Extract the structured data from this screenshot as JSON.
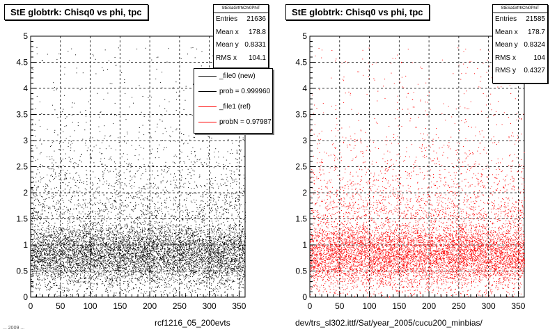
{
  "colors": {
    "new": "#000000",
    "ref": "#ff0000",
    "grid": "#000000"
  },
  "left_panel": {
    "title": "StE globtrk: Chisq0 vs phi, tpc",
    "stats": {
      "header": "StESaGrfrhChi0PhiT",
      "rows": [
        {
          "label": "Entries",
          "value": "21636"
        },
        {
          "label": "Mean x",
          "value": "178.8"
        },
        {
          "label": "Mean y",
          "value": "0.8331"
        },
        {
          "label": "RMS x",
          "value": "104.1"
        }
      ]
    },
    "legend": [
      {
        "label": "_file0 (new)",
        "color": "#000000"
      },
      {
        "label": "prob = 0.999960",
        "color": "#000000"
      },
      {
        "label": "_file1 (ref)",
        "color": "#ff0000"
      },
      {
        "label": "probN = 0.97987",
        "color": "#ff0000"
      }
    ],
    "footer": "rcf1216_05_200evts",
    "stamp": "... 2009 ..."
  },
  "right_panel": {
    "title": "StE globtrk: Chisq0 vs phi, tpc",
    "stats": {
      "header": "StESaGrfrhChi0PhiT",
      "rows": [
        {
          "label": "Entries",
          "value": "21585"
        },
        {
          "label": "Mean x",
          "value": "178.7"
        },
        {
          "label": "Mean y",
          "value": "0.8324"
        },
        {
          "label": "RMS x",
          "value": "104"
        },
        {
          "label": "RMS y",
          "value": "0.4327"
        }
      ]
    },
    "footer": "dev/trs_sl302.ittf/Sat/year_2005/cucu200_minbias/"
  },
  "chart_data": [
    {
      "type": "scatter",
      "title": "StE globtrk: Chisq0 vs phi, tpc",
      "series": [
        {
          "name": "_file0 (new)",
          "color": "#000000",
          "entries": 21636,
          "mean_x": 178.8,
          "mean_y": 0.8331,
          "rms_x": 104.1
        }
      ],
      "xlim": [
        0,
        360
      ],
      "ylim": [
        0,
        5
      ],
      "xticks": [
        "0",
        "50",
        "100",
        "150",
        "200",
        "250",
        "300",
        "350"
      ],
      "yticks": [
        "0",
        "0.5",
        "1",
        "1.5",
        "2",
        "2.5",
        "3",
        "3.5",
        "4",
        "4.5",
        "5"
      ],
      "grid": true,
      "legend_position": "top-right"
    },
    {
      "type": "scatter",
      "title": "StE globtrk: Chisq0 vs phi, tpc",
      "series": [
        {
          "name": "_file1 (ref)",
          "color": "#ff0000",
          "entries": 21585,
          "mean_x": 178.7,
          "mean_y": 0.8324,
          "rms_x": 104,
          "rms_y": 0.4327
        }
      ],
      "xlim": [
        0,
        360
      ],
      "ylim": [
        0,
        5
      ],
      "xticks": [
        "0",
        "50",
        "100",
        "150",
        "200",
        "250",
        "300",
        "350"
      ],
      "yticks": [
        "0",
        "0.5",
        "1",
        "1.5",
        "2",
        "2.5",
        "3",
        "3.5",
        "4",
        "4.5",
        "5"
      ],
      "grid": true
    }
  ]
}
